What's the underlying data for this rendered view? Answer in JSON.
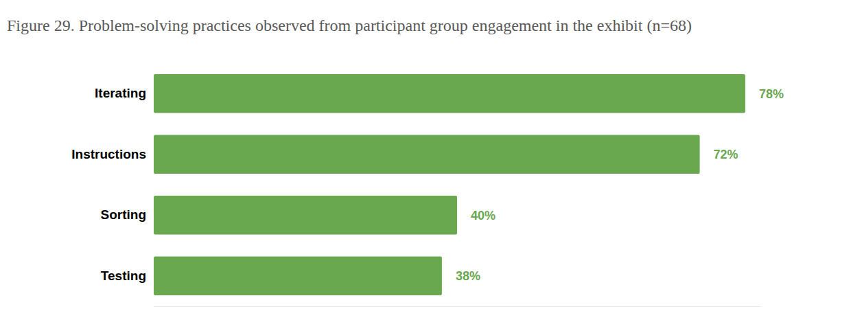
{
  "chart_data": {
    "type": "bar",
    "orientation": "horizontal",
    "title": "Figure 29. Problem-solving practices observed from participant group engagement in the exhibit (n=68)",
    "categories": [
      "Iterating",
      "Instructions",
      "Sorting",
      "Testing"
    ],
    "values": [
      78,
      72,
      40,
      38
    ],
    "value_labels": [
      "78%",
      "72%",
      "40%",
      "38%"
    ],
    "color": "#6aa84f",
    "xlim": [
      0,
      80
    ],
    "data_labels": true,
    "tick_labels": "y"
  }
}
